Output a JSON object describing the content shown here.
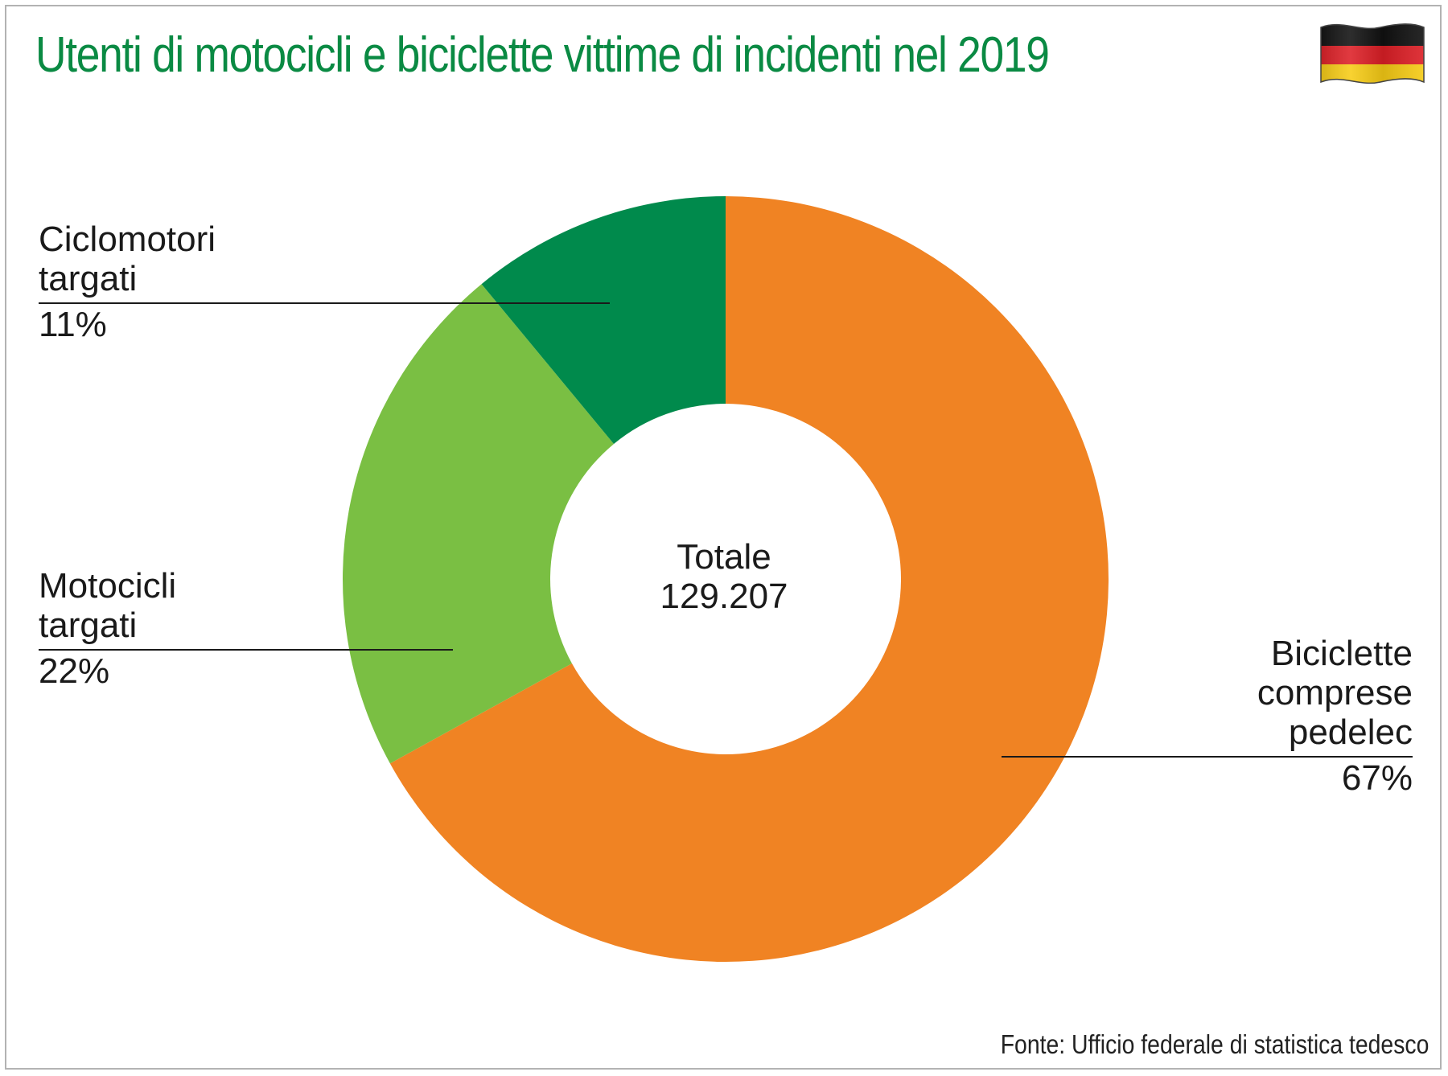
{
  "title": "Utenti di motocicli e biciclette vittime di incidenti nel 2019",
  "source": "Fonte: Ufficio federale di statistica tedesco",
  "icons": {
    "flag": "germany-flag-icon"
  },
  "colors": {
    "title": "#0a8a43",
    "ciclomotori": "#008a4c",
    "motocicli": "#7abf43",
    "biciclette": "#f08323",
    "flag_black": "#111111",
    "flag_red": "#dd1f26",
    "flag_gold": "#f7cc15"
  },
  "chart_data": {
    "type": "pie",
    "donut": true,
    "center_label": "Totale",
    "center_value": "129.207",
    "slices": [
      {
        "name_lines": [
          "Biciclette",
          "comprese",
          "pedelec"
        ],
        "value": 67,
        "value_label": "67%",
        "color": "#f08323"
      },
      {
        "name_lines": [
          "Motocicli",
          "targati"
        ],
        "value": 22,
        "value_label": "22%",
        "color": "#7abf43"
      },
      {
        "name_lines": [
          "Ciclomotori",
          "targati"
        ],
        "value": 11,
        "value_label": "11%",
        "color": "#008a4c"
      }
    ]
  }
}
